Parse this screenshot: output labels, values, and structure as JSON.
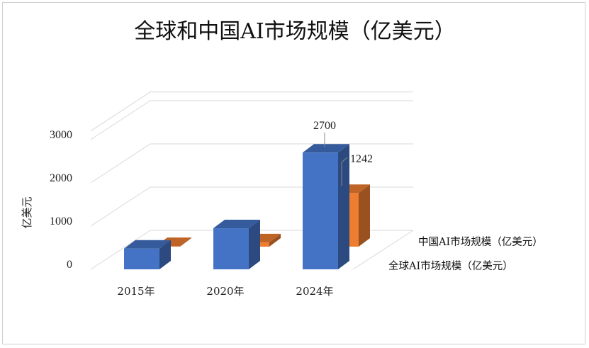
{
  "chart_data": {
    "type": "bar",
    "title": "全球和中国AI市场规模（亿美元）",
    "ylabel": "亿美元",
    "xlabel": "",
    "categories": [
      "2015年",
      "2020年",
      "2024年"
    ],
    "yticks": [
      0,
      1000,
      2000,
      3000
    ],
    "ylim": [
      0,
      3200
    ],
    "three_d": true,
    "grid": true,
    "series": [
      {
        "name": "全球AI市场规模（亿美元）",
        "values": [
          480,
          950,
          2700
        ],
        "color": "#4472C4"
      },
      {
        "name": "中国AI市场规模（亿美元）",
        "values": [
          15,
          100,
          1242
        ],
        "color": "#ED7D31"
      }
    ],
    "data_labels": [
      "2700",
      "1242"
    ]
  }
}
